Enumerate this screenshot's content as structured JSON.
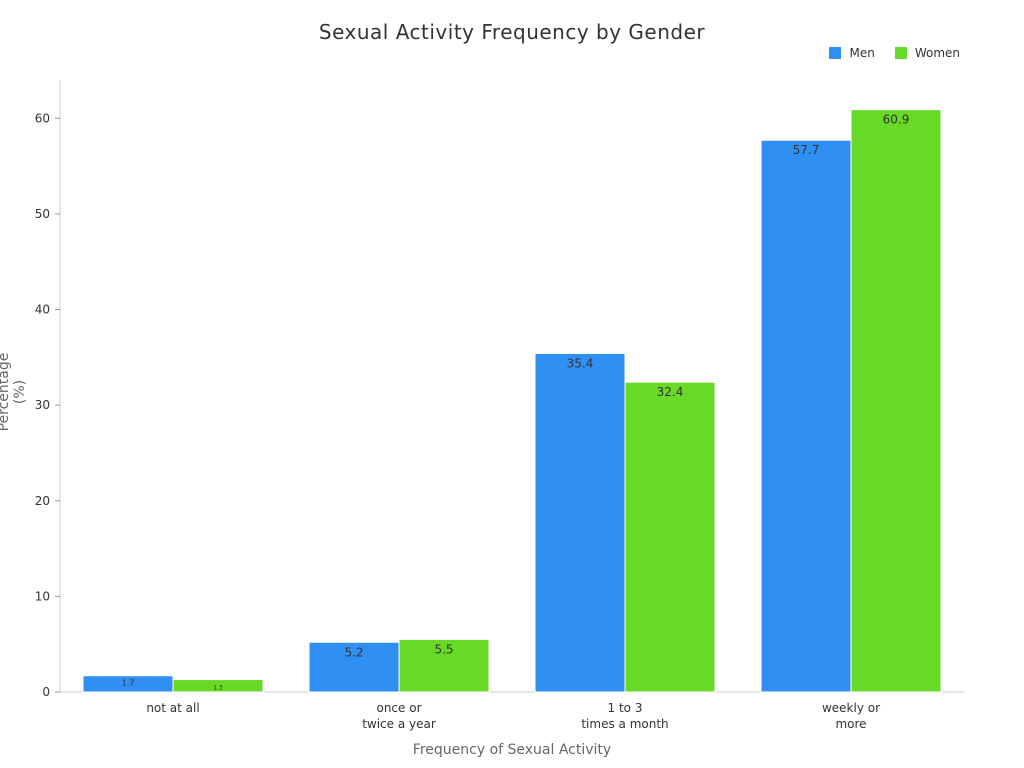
{
  "chart_data": {
    "type": "bar",
    "title": "Sexual Activity Frequency by Gender",
    "xlabel": "Frequency of Sexual Activity",
    "ylabel": "Percentage (%)",
    "categories": [
      [
        "not at all"
      ],
      [
        "once or",
        "twice a year"
      ],
      [
        "1 to 3",
        "times a month"
      ],
      [
        "weekly or",
        "more"
      ]
    ],
    "series": [
      {
        "name": "Men",
        "color": "#2f8ff2",
        "values": [
          1.7,
          5.2,
          35.4,
          57.7
        ],
        "labels": [
          "1.7",
          "5.2",
          "35.4",
          "57.7"
        ]
      },
      {
        "name": "Women",
        "color": "#67d926",
        "values": [
          1.3,
          5.5,
          32.4,
          60.9
        ],
        "labels": [
          "1.3",
          "5.5",
          "32.4",
          "60.9"
        ]
      }
    ],
    "ylim": [
      0,
      64
    ],
    "yticks": [
      0,
      10,
      20,
      30,
      40,
      50,
      60
    ],
    "grid": false,
    "legend_position": "top-right"
  }
}
